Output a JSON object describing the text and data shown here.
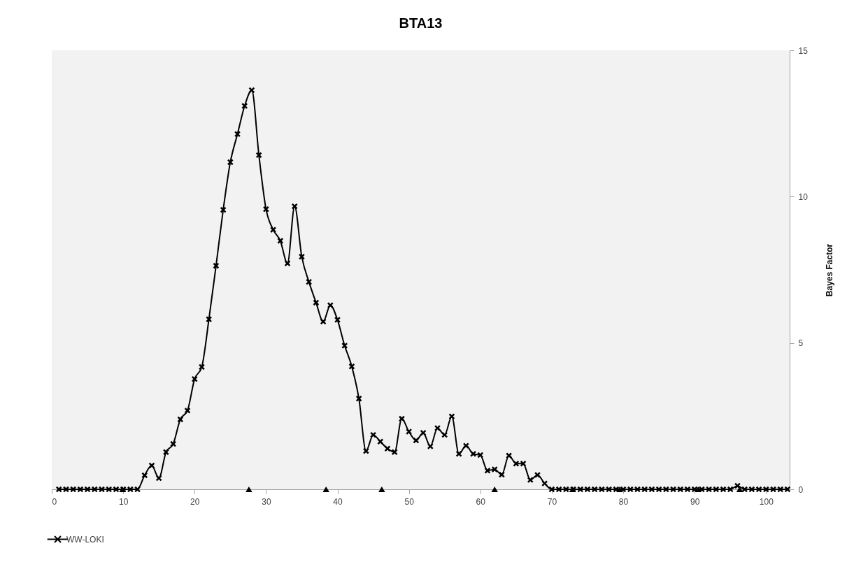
{
  "chart_data": {
    "type": "line",
    "title": "BTA13",
    "ylabel": "Bayes Factor",
    "x": [
      1,
      2,
      3,
      4,
      5,
      6,
      7,
      8,
      9,
      10,
      11,
      12,
      13,
      14,
      15,
      16,
      17,
      18,
      19,
      20,
      21,
      22,
      23,
      24,
      25,
      26,
      27,
      28,
      29,
      30,
      31,
      32,
      33,
      34,
      35,
      36,
      37,
      38,
      39,
      40,
      41,
      42,
      43,
      44,
      45,
      46,
      47,
      48,
      49,
      50,
      51,
      52,
      53,
      54,
      55,
      56,
      57,
      58,
      59,
      60,
      61,
      62,
      63,
      64,
      65,
      66,
      67,
      68,
      69,
      70,
      71,
      72,
      73,
      74,
      75,
      76,
      77,
      78,
      79,
      80,
      81,
      82,
      83,
      84,
      85,
      86,
      87,
      88,
      89,
      90,
      91,
      92,
      93,
      94,
      95,
      96,
      97,
      98,
      99,
      100,
      101,
      102,
      103
    ],
    "series": [
      {
        "name": "WW-LOKI",
        "color": "#000000",
        "values": [
          0,
          0,
          0,
          0,
          0,
          0,
          0,
          0,
          0,
          0,
          0,
          0,
          0.48,
          0.81,
          0.38,
          1.27,
          1.55,
          2.39,
          2.69,
          3.77,
          4.18,
          5.81,
          7.64,
          9.55,
          11.18,
          12.14,
          13.1,
          13.64,
          11.42,
          9.57,
          8.87,
          8.49,
          7.72,
          9.67,
          7.95,
          7.09,
          6.38,
          5.73,
          6.29,
          5.79,
          4.91,
          4.2,
          3.1,
          1.31,
          1.86,
          1.63,
          1.39,
          1.27,
          2.41,
          1.97,
          1.67,
          1.93,
          1.47,
          2.09,
          1.86,
          2.49,
          1.21,
          1.49,
          1.21,
          1.17,
          0.64,
          0.68,
          0.5,
          1.15,
          0.88,
          0.88,
          0.32,
          0.49,
          0.2,
          0,
          0,
          0,
          0,
          0,
          0,
          0,
          0,
          0,
          0,
          0,
          0,
          0,
          0,
          0,
          0,
          0,
          0,
          0,
          0,
          0,
          0,
          0,
          0,
          0,
          0,
          0.12,
          0,
          0,
          0,
          0,
          0,
          0,
          0
        ]
      },
      {
        "type": "scatter",
        "marker": "triangle",
        "color": "#000000",
        "x": [
          9.9,
          27.6,
          38.4,
          46.2,
          62,
          72.9,
          79.5,
          90.5,
          96.3
        ],
        "values": [
          0,
          0,
          0,
          0,
          0,
          0,
          0,
          0,
          0
        ]
      }
    ],
    "marker": "cross",
    "xlim": [
      0,
      103.3
    ],
    "xticks": [
      0,
      10,
      20,
      30,
      40,
      50,
      60,
      70,
      80,
      90,
      100
    ],
    "ylim": [
      0,
      15
    ],
    "yticks": [
      0,
      5,
      10,
      15
    ],
    "legend": "bottom"
  }
}
